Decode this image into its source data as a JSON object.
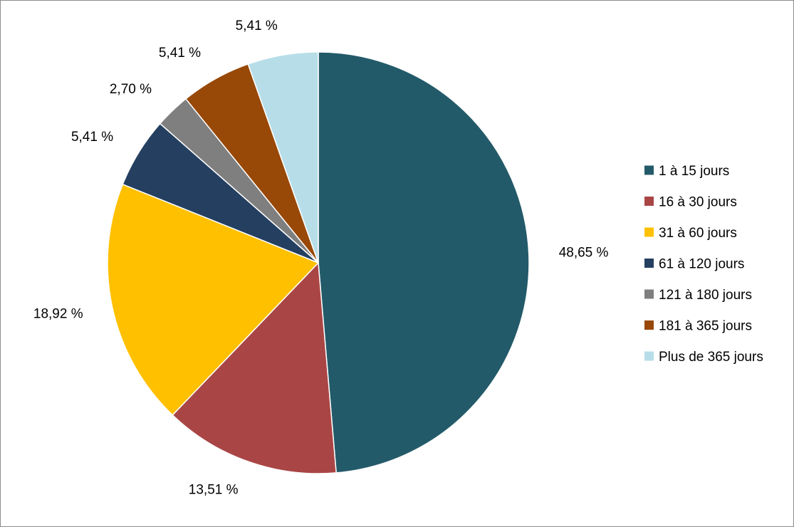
{
  "chart_data": {
    "type": "pie",
    "title": "",
    "legend_position": "right",
    "start_angle": "12 o'clock",
    "direction": "clockwise",
    "slices": [
      {
        "name": "1 à 15 jours",
        "value": 48.65,
        "label": "48,65 %",
        "color": "#235A69"
      },
      {
        "name": "16 à 30 jours",
        "value": 13.51,
        "label": "13,51 %",
        "color": "#A94645"
      },
      {
        "name": "31 à 60 jours",
        "value": 18.92,
        "label": "18,92 %",
        "color": "#FFC000"
      },
      {
        "name": "61 à 120 jours",
        "value": 5.41,
        "label": "5,41 %",
        "color": "#243F60"
      },
      {
        "name": "121 à 180 jours",
        "value": 2.7,
        "label": "2,70 %",
        "color": "#7F7F7F"
      },
      {
        "name": "181 à 365 jours",
        "value": 5.41,
        "label": "5,41 %",
        "color": "#984807"
      },
      {
        "name": "Plus de 365 jours",
        "value": 5.41,
        "label": "5,41 %",
        "color": "#B7DEE8"
      }
    ]
  }
}
